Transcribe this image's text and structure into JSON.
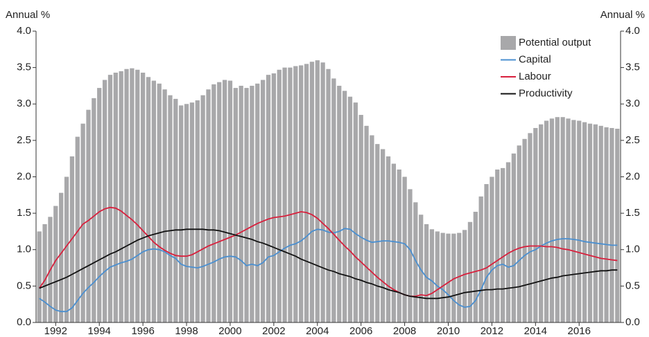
{
  "chart_data": {
    "type": "bar_line",
    "y_label": "Annual %",
    "y2_label": "Annual %",
    "x": [
      1991.25,
      1991.5,
      1991.75,
      1992,
      1992.25,
      1992.5,
      1992.75,
      1993,
      1993.25,
      1993.5,
      1993.75,
      1994,
      1994.25,
      1994.5,
      1994.75,
      1995,
      1995.25,
      1995.5,
      1995.75,
      1996,
      1996.25,
      1996.5,
      1996.75,
      1997,
      1997.25,
      1997.5,
      1997.75,
      1998,
      1998.25,
      1998.5,
      1998.75,
      1999,
      1999.25,
      1999.5,
      1999.75,
      2000,
      2000.25,
      2000.5,
      2000.75,
      2001,
      2001.25,
      2001.5,
      2001.75,
      2002,
      2002.25,
      2002.5,
      2002.75,
      2003,
      2003.25,
      2003.5,
      2003.75,
      2004,
      2004.25,
      2004.5,
      2004.75,
      2005,
      2005.25,
      2005.5,
      2005.75,
      2006,
      2006.25,
      2006.5,
      2006.75,
      2007,
      2007.25,
      2007.5,
      2007.75,
      2008,
      2008.25,
      2008.5,
      2008.75,
      2009,
      2009.25,
      2009.5,
      2009.75,
      2010,
      2010.25,
      2010.5,
      2010.75,
      2011,
      2011.25,
      2011.5,
      2011.75,
      2012,
      2012.25,
      2012.5,
      2012.75,
      2013,
      2013.25,
      2013.5,
      2013.75,
      2014,
      2014.25,
      2014.5,
      2014.75,
      2015,
      2015.25,
      2015.5,
      2015.75,
      2016,
      2016.25,
      2016.5,
      2016.75,
      2017,
      2017.25,
      2017.5,
      2017.75
    ],
    "series": [
      {
        "name": "Potential output",
        "kind": "bar",
        "color": "#a8a8aa",
        "values": [
          1.25,
          1.35,
          1.45,
          1.6,
          1.78,
          2.0,
          2.28,
          2.55,
          2.73,
          2.92,
          3.08,
          3.22,
          3.33,
          3.4,
          3.43,
          3.45,
          3.48,
          3.49,
          3.47,
          3.43,
          3.37,
          3.32,
          3.28,
          3.2,
          3.12,
          3.07,
          2.98,
          3.0,
          3.02,
          3.05,
          3.12,
          3.2,
          3.27,
          3.3,
          3.33,
          3.32,
          3.22,
          3.25,
          3.22,
          3.25,
          3.28,
          3.33,
          3.4,
          3.42,
          3.47,
          3.5,
          3.5,
          3.52,
          3.53,
          3.55,
          3.58,
          3.6,
          3.57,
          3.48,
          3.35,
          3.25,
          3.18,
          3.1,
          3.02,
          2.85,
          2.7,
          2.57,
          2.45,
          2.38,
          2.28,
          2.18,
          2.1,
          2.0,
          1.83,
          1.65,
          1.48,
          1.35,
          1.28,
          1.25,
          1.23,
          1.22,
          1.22,
          1.23,
          1.27,
          1.38,
          1.52,
          1.73,
          1.9,
          2.0,
          2.1,
          2.12,
          2.2,
          2.32,
          2.43,
          2.52,
          2.6,
          2.67,
          2.72,
          2.77,
          2.8,
          2.82,
          2.82,
          2.8,
          2.78,
          2.77,
          2.75,
          2.73,
          2.72,
          2.7,
          2.68,
          2.67,
          2.66
        ]
      },
      {
        "name": "Capital",
        "kind": "line",
        "color": "#4a8fd0",
        "values": [
          0.33,
          0.28,
          0.22,
          0.17,
          0.15,
          0.15,
          0.2,
          0.3,
          0.4,
          0.48,
          0.55,
          0.63,
          0.7,
          0.76,
          0.79,
          0.82,
          0.84,
          0.87,
          0.92,
          0.97,
          1.0,
          1.01,
          1.0,
          0.97,
          0.92,
          0.88,
          0.8,
          0.77,
          0.76,
          0.75,
          0.77,
          0.8,
          0.83,
          0.87,
          0.9,
          0.91,
          0.9,
          0.85,
          0.78,
          0.8,
          0.78,
          0.82,
          0.9,
          0.92,
          0.97,
          1.02,
          1.06,
          1.08,
          1.12,
          1.18,
          1.25,
          1.28,
          1.27,
          1.24,
          1.23,
          1.25,
          1.29,
          1.28,
          1.22,
          1.17,
          1.13,
          1.1,
          1.11,
          1.12,
          1.12,
          1.11,
          1.1,
          1.08,
          1.0,
          0.85,
          0.72,
          0.62,
          0.57,
          0.5,
          0.45,
          0.38,
          0.3,
          0.24,
          0.21,
          0.22,
          0.3,
          0.45,
          0.62,
          0.72,
          0.78,
          0.8,
          0.76,
          0.78,
          0.85,
          0.92,
          0.97,
          1.0,
          1.05,
          1.09,
          1.12,
          1.14,
          1.15,
          1.15,
          1.14,
          1.13,
          1.11,
          1.1,
          1.09,
          1.08,
          1.07,
          1.06,
          1.06
        ]
      },
      {
        "name": "Labour",
        "kind": "line",
        "color": "#d81f3c",
        "values": [
          0.47,
          0.58,
          0.72,
          0.85,
          0.95,
          1.05,
          1.15,
          1.25,
          1.35,
          1.4,
          1.46,
          1.52,
          1.56,
          1.58,
          1.57,
          1.53,
          1.47,
          1.41,
          1.34,
          1.26,
          1.18,
          1.1,
          1.04,
          0.99,
          0.95,
          0.92,
          0.91,
          0.91,
          0.93,
          0.97,
          1.01,
          1.05,
          1.08,
          1.11,
          1.14,
          1.17,
          1.2,
          1.24,
          1.28,
          1.32,
          1.36,
          1.39,
          1.42,
          1.44,
          1.45,
          1.46,
          1.48,
          1.5,
          1.52,
          1.51,
          1.48,
          1.43,
          1.36,
          1.29,
          1.21,
          1.13,
          1.05,
          0.98,
          0.9,
          0.83,
          0.76,
          0.69,
          0.62,
          0.56,
          0.5,
          0.45,
          0.41,
          0.38,
          0.36,
          0.36,
          0.38,
          0.37,
          0.4,
          0.45,
          0.5,
          0.55,
          0.6,
          0.63,
          0.66,
          0.68,
          0.7,
          0.72,
          0.75,
          0.8,
          0.85,
          0.9,
          0.95,
          0.99,
          1.02,
          1.04,
          1.05,
          1.05,
          1.05,
          1.04,
          1.04,
          1.03,
          1.01,
          1.0,
          0.98,
          0.96,
          0.94,
          0.92,
          0.9,
          0.88,
          0.87,
          0.86,
          0.85
        ]
      },
      {
        "name": "Productivity",
        "kind": "line",
        "color": "#111111",
        "values": [
          0.47,
          0.5,
          0.53,
          0.56,
          0.59,
          0.62,
          0.66,
          0.7,
          0.74,
          0.78,
          0.82,
          0.86,
          0.9,
          0.94,
          0.97,
          1.01,
          1.05,
          1.09,
          1.13,
          1.16,
          1.19,
          1.21,
          1.23,
          1.25,
          1.26,
          1.27,
          1.27,
          1.28,
          1.28,
          1.28,
          1.28,
          1.27,
          1.27,
          1.26,
          1.24,
          1.22,
          1.2,
          1.18,
          1.16,
          1.14,
          1.11,
          1.09,
          1.06,
          1.03,
          1.0,
          0.97,
          0.94,
          0.91,
          0.87,
          0.84,
          0.81,
          0.78,
          0.75,
          0.72,
          0.7,
          0.67,
          0.65,
          0.63,
          0.6,
          0.58,
          0.55,
          0.53,
          0.5,
          0.48,
          0.45,
          0.43,
          0.41,
          0.38,
          0.36,
          0.35,
          0.34,
          0.33,
          0.33,
          0.33,
          0.34,
          0.35,
          0.37,
          0.39,
          0.41,
          0.42,
          0.43,
          0.44,
          0.45,
          0.45,
          0.46,
          0.46,
          0.47,
          0.48,
          0.49,
          0.51,
          0.53,
          0.55,
          0.57,
          0.59,
          0.61,
          0.62,
          0.64,
          0.65,
          0.66,
          0.67,
          0.68,
          0.69,
          0.7,
          0.71,
          0.71,
          0.72,
          0.72
        ]
      }
    ],
    "xlim": [
      1991.1,
      2017.9
    ],
    "xticks": [
      1992,
      1994,
      1996,
      1998,
      2000,
      2002,
      2004,
      2006,
      2008,
      2010,
      2012,
      2014,
      2016
    ],
    "ylim": [
      0,
      4
    ],
    "yticks": [
      {
        "value": 0,
        "label": "0.0"
      },
      {
        "value": 0.5,
        "label": "0.5"
      },
      {
        "value": 1,
        "label": "1.0"
      },
      {
        "value": 1.5,
        "label": "1.5"
      },
      {
        "value": 2,
        "label": "2.0"
      },
      {
        "value": 2.5,
        "label": "2.5"
      },
      {
        "value": 3,
        "label": "3.0"
      },
      {
        "value": 3.5,
        "label": "3.5"
      },
      {
        "value": 4,
        "label": "4.0"
      }
    ],
    "y2lim": [
      0,
      4
    ],
    "y2ticks": [
      {
        "value": 0,
        "label": "0.0"
      },
      {
        "value": 0.5,
        "label": "0.5"
      },
      {
        "value": 1,
        "label": "1.0"
      },
      {
        "value": 1.5,
        "label": "1.5"
      },
      {
        "value": 2,
        "label": "2.0"
      },
      {
        "value": 2.5,
        "label": "2.5"
      },
      {
        "value": 3,
        "label": "3.0"
      },
      {
        "value": 3.5,
        "label": "3.5"
      },
      {
        "value": 4,
        "label": "4.0"
      }
    ],
    "legend": "top-right",
    "grid": false
  }
}
